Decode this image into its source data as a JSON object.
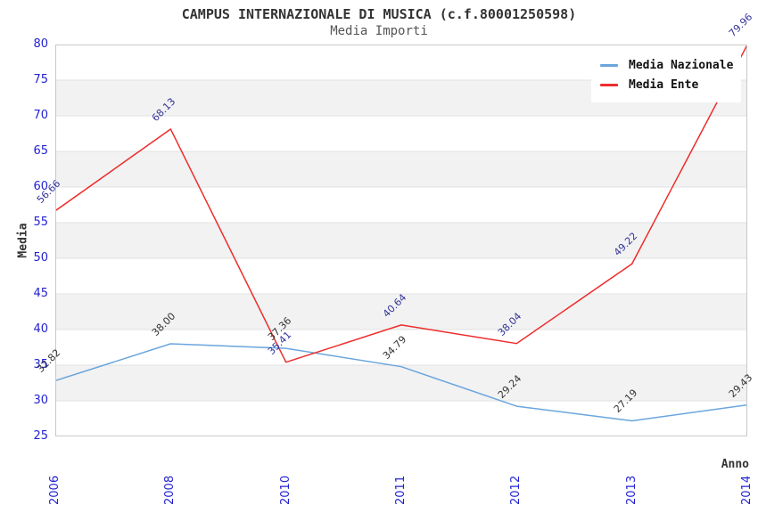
{
  "header": {
    "title": "CAMPUS INTERNAZIONALE DI MUSICA (c.f.80001250598)",
    "subtitle": "Media Importi"
  },
  "legend": [
    {
      "label": "Media Nazionale",
      "color": "#6aa5dd"
    },
    {
      "label": "Media Ente",
      "color": "#ee2c2c"
    }
  ],
  "chart_data": {
    "type": "line",
    "title": "CAMPUS INTERNAZIONALE DI MUSICA (c.f.80001250598)",
    "subtitle": "Media Importi",
    "xlabel": "Anno",
    "ylabel": "Media",
    "x": [
      "2006",
      "2008",
      "2010",
      "2011",
      "2012",
      "2013",
      "2014"
    ],
    "ylim": [
      25,
      80
    ],
    "yticks": [
      25,
      30,
      35,
      40,
      45,
      50,
      55,
      60,
      65,
      70,
      75,
      80
    ],
    "grid": "horizontal-bands",
    "legend_position": "top-right-inside",
    "series": [
      {
        "name": "Media Nazionale",
        "color": "#6aa5dd",
        "label_color": "#333333",
        "values": [
          32.82,
          38.0,
          37.36,
          34.79,
          29.24,
          27.19,
          29.43
        ],
        "labels": [
          "32.82",
          "38.00",
          "37.36",
          "34.79",
          "29.24",
          "27.19",
          "29.43"
        ]
      },
      {
        "name": "Media Ente",
        "color": "#ee2c2c",
        "label_color": "#333399",
        "values": [
          56.66,
          68.13,
          35.41,
          40.64,
          38.04,
          49.22,
          79.96
        ],
        "labels": [
          "56.66",
          "68.13",
          "35.41",
          "40.64",
          "38.04",
          "49.22",
          "79.96"
        ]
      }
    ],
    "style": {
      "band_color": "#f2f2f2",
      "grid_color": "#e2e2e2",
      "frame_color": "#c9c9c9",
      "tick_label_color": "#2323d3"
    }
  }
}
